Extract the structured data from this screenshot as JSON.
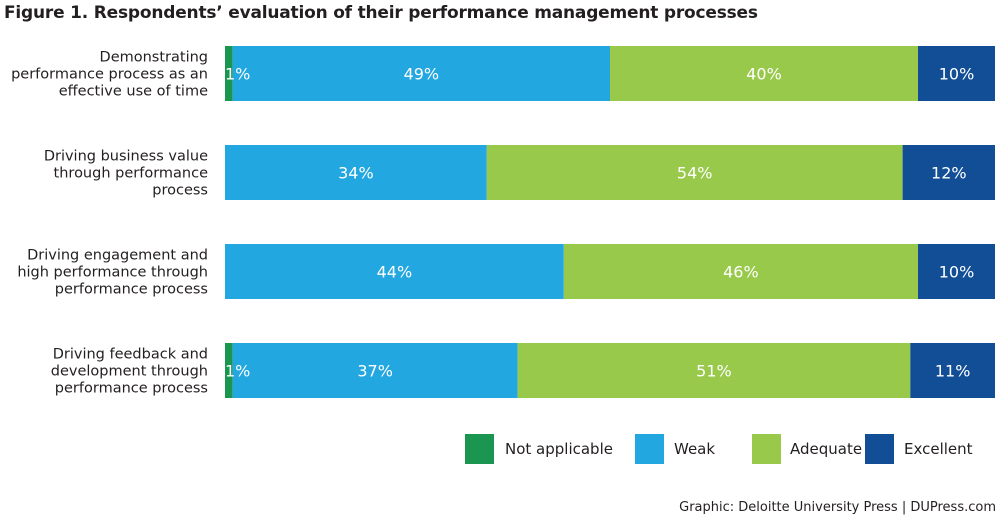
{
  "chart_data": {
    "type": "bar",
    "orientation": "horizontal",
    "stacked": true,
    "title": "Figure 1. Respondents’ evaluation of their performance management processes",
    "xlabel": "",
    "ylabel": "",
    "xlim": [
      0,
      100
    ],
    "grid": false,
    "legend_position": "bottom-right",
    "categories": [
      [
        "Demonstrating",
        "performance process as an",
        "effective use of time"
      ],
      [
        "Driving business value",
        "through performance",
        "process"
      ],
      [
        "Driving engagement and",
        "high performance through",
        "performance process"
      ],
      [
        "Driving feedback and",
        "development through",
        "performance process"
      ]
    ],
    "series": [
      {
        "name": "Not applicable",
        "color": "#1a9650",
        "values": [
          1,
          0,
          0,
          1
        ]
      },
      {
        "name": "Weak",
        "color": "#22a7e0",
        "values": [
          49,
          34,
          44,
          37
        ]
      },
      {
        "name": "Adequate",
        "color": "#98c94b",
        "values": [
          40,
          54,
          46,
          51
        ]
      },
      {
        "name": "Excellent",
        "color": "#124e96",
        "values": [
          10,
          12,
          10,
          11
        ]
      }
    ],
    "value_suffix": "%"
  },
  "footer": {
    "source": "Graphic: Deloitte University Press  |  DUPress.com"
  }
}
